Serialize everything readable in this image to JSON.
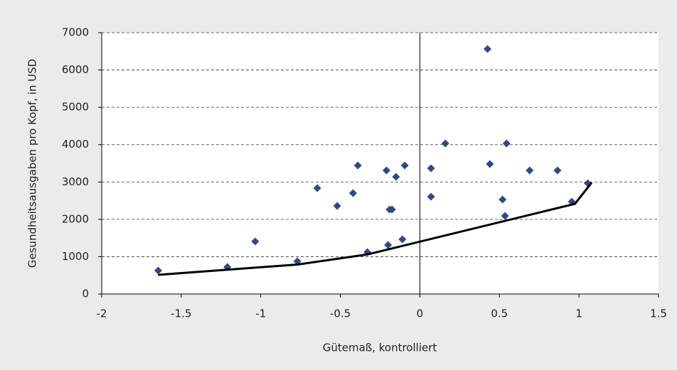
{
  "chart_data": {
    "type": "scatter",
    "x_label": "Gütemaß, kontrolliert",
    "y_label": "Gesundheitsausgaben pro Kopf, in USD",
    "xlim": [
      -2,
      1.5
    ],
    "xticks": [
      -2,
      -1.5,
      -1,
      -0.5,
      0,
      0.5,
      1,
      1.5
    ],
    "ylim": [
      0,
      7000
    ],
    "yticks": [
      0,
      1000,
      2000,
      3000,
      4000,
      5000,
      6000,
      7000
    ],
    "grid": true,
    "series": [
      {
        "style": "markers",
        "color": "#2e4a86",
        "x": [
          -1.645,
          -1.21,
          -1.035,
          -0.77,
          -0.645,
          -0.52,
          -0.42,
          -0.39,
          -0.33,
          -0.21,
          -0.2,
          -0.19,
          -0.175,
          -0.15,
          -0.11,
          -0.095,
          0.07,
          0.07,
          0.16,
          0.425,
          0.44,
          0.52,
          0.535,
          0.545,
          0.69,
          0.865,
          0.955,
          1.055
        ],
        "values": [
          628,
          723,
          1408,
          875,
          2834,
          2359,
          2701,
          3443,
          1122,
          3310,
          1313,
          2264,
          2264,
          3139,
          1465,
          3443,
          3367,
          2606,
          4033,
          6563,
          3481,
          2530,
          2093,
          4033,
          3310,
          3310,
          2473,
          2967
        ]
      },
      {
        "style": "line",
        "color": "#000000",
        "x": [
          -1.645,
          -0.77,
          -0.33,
          0.975,
          1.08
        ],
        "values": [
          514,
          790,
          1060,
          2416,
          2986
        ]
      }
    ]
  }
}
